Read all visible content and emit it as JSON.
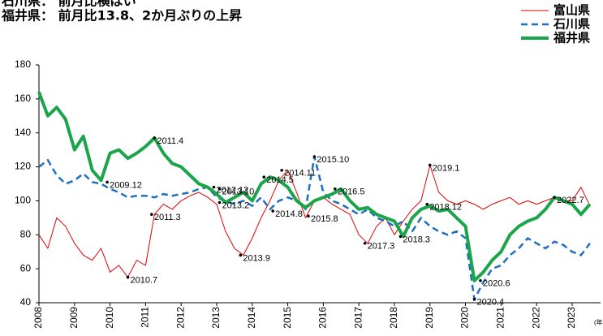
{
  "chart_data": {
    "type": "line",
    "subtitles": [
      "石川県： 前月比横ばい",
      "福井県： 前月比13.8、2か月ぶりの上昇"
    ],
    "x_label": "(年",
    "x": [
      2008,
      2008.25,
      2008.5,
      2008.75,
      2009,
      2009.25,
      2009.5,
      2009.75,
      2010,
      2010.25,
      2010.5,
      2010.75,
      2011,
      2011.25,
      2011.5,
      2011.75,
      2012,
      2012.25,
      2012.5,
      2012.75,
      2013,
      2013.25,
      2013.5,
      2013.75,
      2014,
      2014.25,
      2014.5,
      2014.75,
      2015,
      2015.25,
      2015.5,
      2015.75,
      2016,
      2016.25,
      2016.5,
      2016.75,
      2017,
      2017.25,
      2017.5,
      2017.75,
      2018,
      2018.25,
      2018.5,
      2018.75,
      2019,
      2019.25,
      2019.5,
      2019.75,
      2020,
      2020.25,
      2020.5,
      2020.75,
      2021,
      2021.25,
      2021.5,
      2021.75,
      2022,
      2022.25,
      2022.5,
      2022.75,
      2023,
      2023.25,
      2023.5
    ],
    "series": [
      {
        "name": "富山県",
        "color": "#e00000",
        "width": 1,
        "dash": false,
        "values": [
          80,
          72,
          90,
          85,
          75,
          68,
          65,
          72,
          58,
          62,
          55,
          65,
          62,
          92,
          98,
          95,
          100,
          103,
          105,
          102,
          98,
          82,
          72,
          68,
          78,
          90,
          100,
          112,
          118,
          105,
          90,
          100,
          102,
          98,
          95,
          92,
          80,
          75,
          85,
          90,
          80,
          88,
          95,
          100,
          121,
          105,
          100,
          98,
          100,
          98,
          95,
          98,
          100,
          102,
          98,
          100,
          98,
          100,
          102,
          100,
          100,
          108,
          97
        ]
      },
      {
        "name": "石川県",
        "color": "#1f6fc0",
        "width": 2.5,
        "dash": true,
        "values": [
          120,
          124,
          115,
          110,
          112,
          116,
          111,
          110,
          107,
          105,
          102,
          103,
          103,
          102,
          104,
          103,
          104,
          105,
          107,
          108,
          102,
          100,
          98,
          100,
          97,
          102,
          95,
          100,
          102,
          100,
          95,
          126,
          105,
          100,
          98,
          95,
          92,
          95,
          90,
          88,
          85,
          88,
          82,
          90,
          85,
          82,
          80,
          82,
          78,
          42,
          52,
          60,
          62,
          68,
          72,
          78,
          75,
          72,
          76,
          74,
          70,
          68,
          75
        ]
      },
      {
        "name": "福井県",
        "color": "#1aa54a",
        "width": 4,
        "dash": false,
        "values": [
          164,
          150,
          155,
          148,
          130,
          138,
          118,
          112,
          128,
          130,
          125,
          128,
          132,
          137,
          128,
          122,
          120,
          115,
          110,
          108,
          104,
          99,
          102,
          105,
          100,
          110,
          114,
          112,
          108,
          100,
          96,
          100,
          102,
          104,
          107,
          100,
          95,
          96,
          92,
          90,
          88,
          79,
          90,
          95,
          97,
          94,
          95,
          90,
          85,
          53,
          58,
          65,
          70,
          80,
          85,
          88,
          90,
          95,
          102,
          100,
          98,
          92,
          98
        ]
      }
    ],
    "annotations": [
      {
        "label": "2011.4",
        "x": 2011.25,
        "y": 137
      },
      {
        "label": "2009.12",
        "x": 2009.92,
        "y": 111
      },
      {
        "label": "2011.3",
        "x": 2011.17,
        "y": 92
      },
      {
        "label": "2010.7",
        "x": 2010.5,
        "y": 55
      },
      {
        "label": "2012.12",
        "x": 2012.92,
        "y": 108
      },
      {
        "label": "2013.10",
        "x": 2013.08,
        "y": 107
      },
      {
        "label": "2013.2",
        "x": 2013.08,
        "y": 99
      },
      {
        "label": "2013.9",
        "x": 2013.67,
        "y": 68
      },
      {
        "label": "2014.5",
        "x": 2014.33,
        "y": 114
      },
      {
        "label": "2014.11",
        "x": 2014.83,
        "y": 118
      },
      {
        "label": "2014.8",
        "x": 2014.58,
        "y": 94
      },
      {
        "label": "2015.10",
        "x": 2015.75,
        "y": 126
      },
      {
        "label": "2015.8",
        "x": 2015.58,
        "y": 91
      },
      {
        "label": "2016.5",
        "x": 2016.33,
        "y": 107
      },
      {
        "label": "2017.3",
        "x": 2017.17,
        "y": 75
      },
      {
        "label": "2018.3",
        "x": 2018.17,
        "y": 79
      },
      {
        "label": "2019.1",
        "x": 2019.0,
        "y": 121
      },
      {
        "label": "2018.12",
        "x": 2018.92,
        "y": 98
      },
      {
        "label": "2020.6",
        "x": 2020.42,
        "y": 53
      },
      {
        "label": "2020.4",
        "x": 2020.25,
        "y": 42
      },
      {
        "label": "2022.7",
        "x": 2022.5,
        "y": 102
      }
    ],
    "xlim": [
      2008,
      2023.8
    ],
    "xticks": [
      2008,
      2009,
      2010,
      2011,
      2012,
      2013,
      2014,
      2015,
      2016,
      2017,
      2018,
      2019,
      2020,
      2021,
      2022,
      2023
    ],
    "ylim": [
      40,
      180
    ],
    "yticks": [
      40,
      60,
      80,
      100,
      120,
      140,
      160,
      180
    ],
    "grid": false
  }
}
